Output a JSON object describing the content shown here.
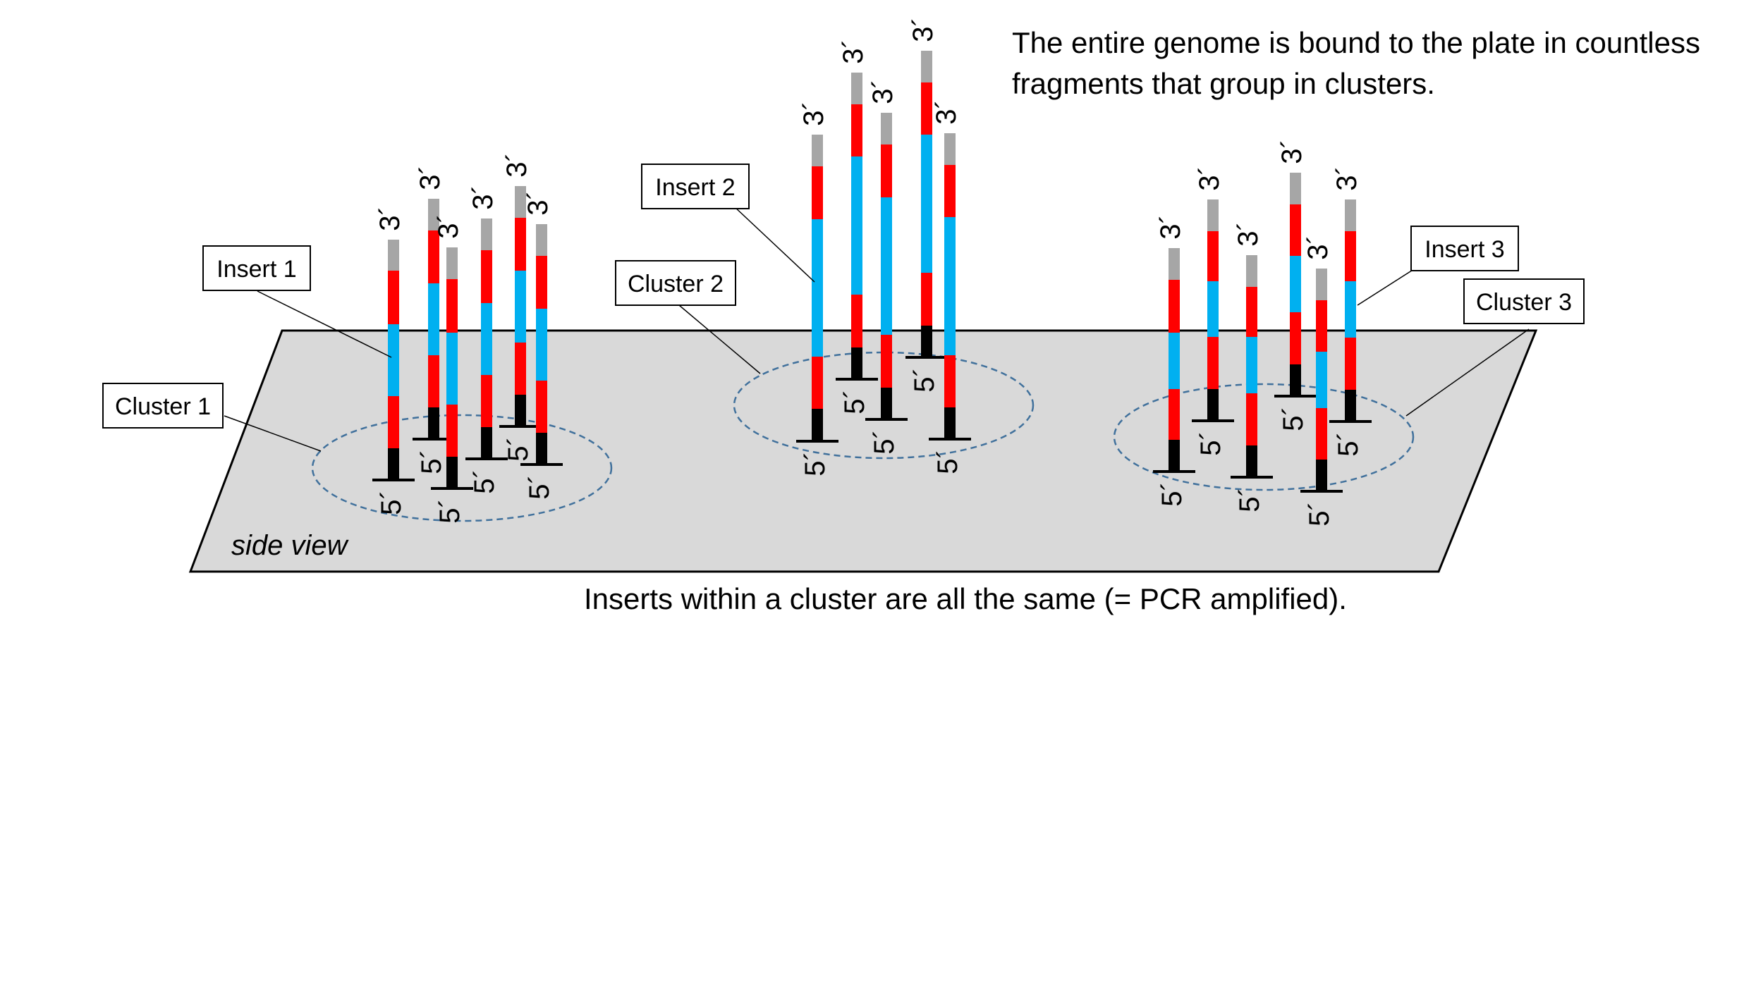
{
  "header": {
    "line1": "The entire genome is bound to the plate in countless",
    "line2": "fragments that group in clusters."
  },
  "footer_note": "Inserts within a cluster are all the same (= PCR amplified).",
  "plate": {
    "caption": "side view",
    "fill": "#d9d9d9"
  },
  "labels": {
    "insert1": "Insert 1",
    "insert2": "Insert 2",
    "insert3": "Insert 3",
    "cluster1": "Cluster 1",
    "cluster2": "Cluster 2",
    "cluster3": "Cluster 3"
  },
  "end_labels": {
    "three_prime": "3´",
    "five_prime": "5´"
  },
  "colors": {
    "adapter_top": "#a6a6a6",
    "red_segment": "#ff0000",
    "blue_segment": "#00b0f0",
    "anchor": "#000000",
    "cluster_outline": "#41719c"
  }
}
